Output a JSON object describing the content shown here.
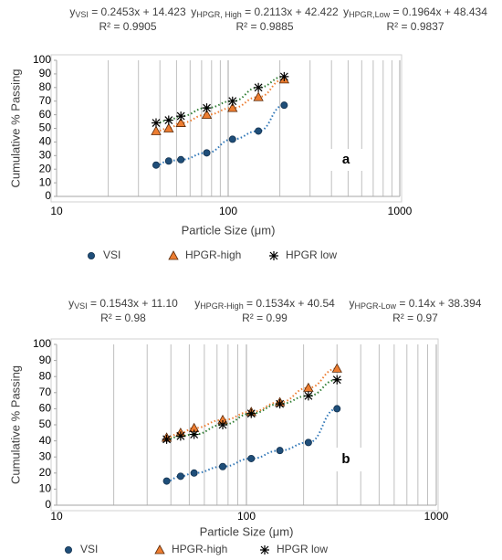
{
  "chart_data": [
    {
      "type": "scatter",
      "label": "a",
      "x_label": "Particle Size (μm)",
      "y_label": "Cumulative % Passing",
      "xlog": true,
      "xlim": [
        10,
        1000
      ],
      "xticks": [
        10,
        100,
        1000
      ],
      "ylim": [
        0,
        100
      ],
      "yticks": [
        0,
        10,
        20,
        30,
        40,
        50,
        60,
        70,
        80,
        90,
        100
      ],
      "minor_grid": true,
      "annotations": [
        {
          "lhs": "y",
          "sub": "VSI",
          "rhs": " = 0.2453x + 14.423",
          "r2": "R² = 0.9905"
        },
        {
          "lhs": "y",
          "sub": "HPGR, High",
          "rhs": " = 0.2113x + 42.422",
          "r2": "R² = 0.9885"
        },
        {
          "lhs": "y",
          "sub": "HPGR,Low",
          "rhs": " = 0.1964x + 48.434",
          "r2": "R² = 0.9837"
        }
      ],
      "x": [
        38,
        45,
        53,
        75,
        106,
        150,
        212
      ],
      "series": [
        {
          "name": "VSI",
          "color": "#1f4e79",
          "trend_color": "#2e75b6",
          "marker": "circle",
          "values": [
            23,
            26,
            27,
            32,
            42,
            48,
            67
          ]
        },
        {
          "name": "HPGR-high",
          "color": "#ed7d31",
          "trend_color": "#ed7d31",
          "marker": "triangle",
          "values": [
            48,
            50,
            54,
            60,
            65,
            73,
            86
          ]
        },
        {
          "name": "HPGR low",
          "color": "#000000",
          "trend_color": "#2e7d32",
          "marker": "star",
          "values": [
            54,
            56,
            59,
            65,
            70,
            80,
            88
          ]
        }
      ]
    },
    {
      "type": "scatter",
      "label": "b",
      "x_label": "Particle Size (μm)",
      "y_label": "Cumulative % Passing",
      "xlog": true,
      "xlim": [
        10,
        1000
      ],
      "xticks": [
        10,
        100,
        1000
      ],
      "ylim": [
        0,
        100
      ],
      "yticks": [
        0,
        10,
        20,
        30,
        40,
        50,
        60,
        70,
        80,
        90,
        100
      ],
      "minor_grid": true,
      "annotations": [
        {
          "lhs": "y",
          "sub": "VSI",
          "rhs": " = 0.1543x + 11.10",
          "r2": "R² = 0.98"
        },
        {
          "lhs": "y",
          "sub": "HPGR-High",
          "rhs": " = 0.1534x + 40.54",
          "r2": "R² = 0.99"
        },
        {
          "lhs": "y",
          "sub": "HPGR-Low",
          "rhs": " = 0.14x + 38.394",
          "r2": "R² = 0.97"
        }
      ],
      "x": [
        38,
        45,
        53,
        75,
        106,
        150,
        212,
        300
      ],
      "series": [
        {
          "name": "VSI",
          "color": "#1f4e79",
          "trend_color": "#2e75b6",
          "marker": "circle",
          "values": [
            15,
            18,
            20,
            24,
            29,
            34,
            39,
            60
          ]
        },
        {
          "name": "HPGR-high",
          "color": "#ed7d31",
          "trend_color": "#ed7d31",
          "marker": "triangle",
          "values": [
            42,
            45,
            48,
            53,
            58,
            64,
            73,
            85
          ]
        },
        {
          "name": "HPGR low",
          "color": "#000000",
          "trend_color": "#2e7d32",
          "marker": "star",
          "values": [
            41,
            43,
            44,
            50,
            57,
            63,
            68,
            78
          ]
        }
      ]
    }
  ]
}
